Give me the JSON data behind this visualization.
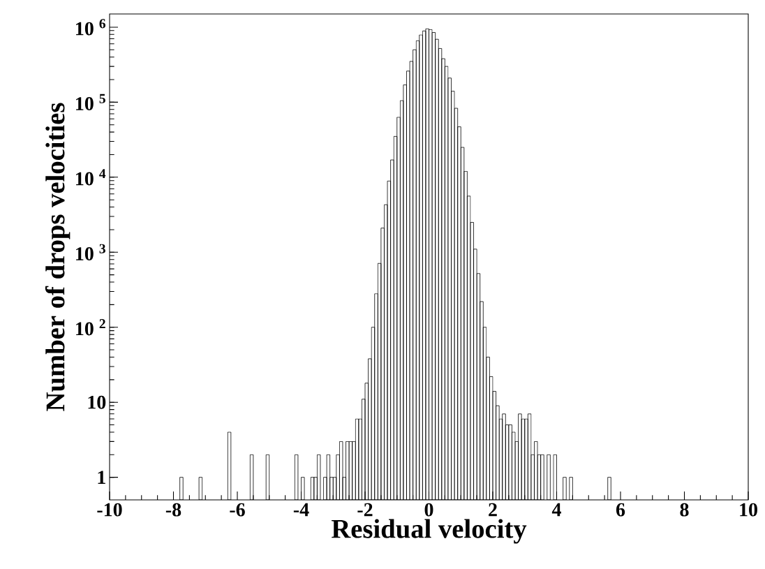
{
  "chart_data": {
    "type": "histogram",
    "xlabel": "Residual velocity",
    "ylabel": "Number of drops velocities",
    "color": "#000000",
    "log": "y",
    "xlim": [
      -10,
      10
    ],
    "ylim": [
      0.5,
      1500000
    ],
    "xticks": [
      -10,
      -8,
      -6,
      -4,
      -2,
      0,
      2,
      4,
      6,
      8,
      10
    ],
    "yticks": [
      1,
      10,
      {
        "value": 100,
        "label": "10 $^{2}$"
      },
      {
        "value": 1000,
        "label": "10 $^{3}$"
      },
      {
        "value": 10000,
        "label": "10 $^{4}$"
      },
      {
        "value": 100000,
        "label": "10 $^{5}$"
      },
      {
        "value": 1000000,
        "label": "10 $^{6}$"
      }
    ],
    "bins": [
      -8.0,
      -7.9,
      -7.8,
      -7.7,
      -7.6,
      -7.5,
      -7.4,
      -7.3,
      -7.2,
      -7.1,
      -7.0,
      -6.9,
      -6.8,
      -6.7,
      -6.6,
      -6.5,
      -6.4,
      -6.3,
      -6.2,
      -6.1,
      -6.0,
      -5.9,
      -5.8,
      -5.7,
      -5.6,
      -5.5,
      -5.4,
      -5.3,
      -5.2,
      -5.1,
      -5.0,
      -4.9,
      -4.8,
      -4.7,
      -4.6,
      -4.5,
      -4.4,
      -4.3,
      -4.2,
      -4.1,
      -4.0,
      -3.9,
      -3.8,
      -3.7,
      -3.6,
      -3.5,
      -3.4,
      -3.3,
      -3.2,
      -3.1,
      -3.0,
      -2.9,
      -2.8,
      -2.7,
      -2.6,
      -2.5,
      -2.4,
      -2.3,
      -2.2,
      -2.1,
      -2.0,
      -1.9,
      -1.8,
      -1.7,
      -1.6,
      -1.5,
      -1.4,
      -1.3,
      -1.2,
      -1.1,
      -1.0,
      -0.9,
      -0.8,
      -0.7,
      -0.6,
      -0.5,
      -0.4,
      -0.3,
      -0.2,
      -0.1,
      0.0,
      0.1,
      0.2,
      0.3,
      0.4,
      0.5,
      0.6,
      0.7,
      0.8,
      0.9,
      1.0,
      1.1,
      1.2,
      1.3,
      1.4,
      1.5,
      1.6,
      1.7,
      1.8,
      1.9,
      2.0,
      2.1,
      2.2,
      2.3,
      2.4,
      2.5,
      2.6,
      2.7,
      2.8,
      2.9,
      3.0,
      3.1,
      3.2,
      3.3,
      3.4,
      3.5,
      3.6,
      3.7,
      3.8,
      3.9,
      4.0,
      4.1,
      4.2,
      4.3,
      4.4,
      4.5,
      4.6,
      4.7,
      4.8,
      4.9,
      5.0,
      5.1,
      5.2,
      5.3,
      5.4,
      5.5,
      5.6,
      5.7,
      5.8,
      5.9,
      6.0
    ],
    "values": [
      null,
      null,
      1,
      null,
      null,
      null,
      null,
      null,
      1,
      null,
      null,
      null,
      null,
      null,
      null,
      null,
      null,
      4,
      null,
      null,
      null,
      null,
      null,
      null,
      2,
      null,
      null,
      null,
      null,
      2,
      null,
      null,
      null,
      null,
      null,
      null,
      null,
      null,
      2,
      null,
      1,
      null,
      null,
      1,
      1,
      2,
      null,
      1,
      2,
      1,
      1,
      2,
      3,
      1,
      3,
      3,
      3,
      6,
      6,
      11,
      18,
      38,
      100,
      280,
      710,
      2100,
      4300,
      8900,
      17000,
      35000,
      63000,
      105000,
      170000,
      260000,
      350000,
      500000,
      660000,
      790000,
      890000,
      950000,
      930000,
      850000,
      690000,
      520000,
      380000,
      300000,
      210000,
      140000,
      83000,
      47000,
      25000,
      12000,
      5600,
      2500,
      1100,
      520,
      220,
      100,
      40,
      22,
      14,
      9,
      6,
      7,
      5,
      5,
      4,
      3,
      7,
      6,
      6,
      7,
      2,
      3,
      2,
      2,
      null,
      2,
      null,
      2,
      null,
      null,
      1,
      null,
      1,
      null,
      null,
      null,
      null,
      null,
      null,
      null,
      null,
      null,
      null,
      null,
      1,
      null,
      null,
      null
    ]
  }
}
